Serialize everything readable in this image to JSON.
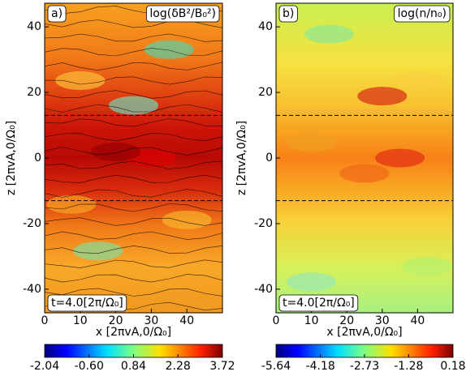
{
  "chart_data": [
    {
      "type": "heatmap",
      "panel_label": "a)",
      "title": "log(δB²/B₀²)",
      "annotation": "t=4.0[2π/Ω₀]",
      "xlabel": "x [2πvA,0/Ω₀]",
      "ylabel": "z [2πvA,0/Ω₀]",
      "xlim": [
        0,
        50
      ],
      "ylim": [
        -47.2,
        47.2
      ],
      "xticks": [
        0,
        10,
        20,
        30,
        40
      ],
      "yticks": [
        -40,
        -20,
        0,
        20,
        40
      ],
      "hlines": [
        13,
        -13
      ],
      "streamlines": true,
      "clim": [
        -2.04,
        3.72
      ],
      "cticks": [
        -2.04,
        {
          "value": -0.6,
          "label": "-0.60"
        },
        0.84,
        2.28,
        3.72
      ]
    },
    {
      "type": "heatmap",
      "panel_label": "b)",
      "title": "log(n/n₀)",
      "annotation": "t=4.0[2π/Ω₀]",
      "xlabel": "x [2πvA,0/Ω₀]",
      "ylabel": "z [2πvA,0/Ω₀]",
      "xlim": [
        0,
        50
      ],
      "ylim": [
        -47.2,
        47.2
      ],
      "xticks": [
        0,
        10,
        20,
        30,
        40
      ],
      "yticks": [
        -40,
        -20,
        0,
        20,
        40
      ],
      "hlines": [
        13,
        -13
      ],
      "streamlines": false,
      "clim": [
        -5.64,
        0.18
      ],
      "cticks": [
        -5.64,
        -4.18,
        -2.73,
        -1.28,
        0.18
      ]
    }
  ]
}
